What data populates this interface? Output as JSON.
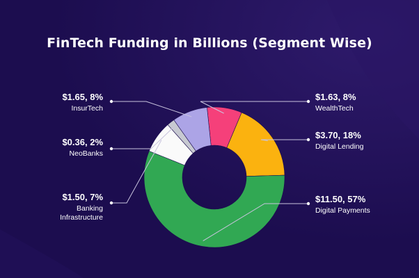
{
  "colors": {
    "background": "#1c0d4f",
    "background_glow": "#2c1866",
    "text": "#ffffff",
    "leader": "#c9c4de"
  },
  "chart_data": {
    "type": "pie",
    "variant": "donut",
    "title": "FinTech Funding in Billions (Segment Wise)",
    "unit": "$ billions",
    "slices": [
      {
        "label": "WealthTech",
        "value": 1.63,
        "percent": 8,
        "value_label": "$1.63, 8%",
        "color": "#f5407a"
      },
      {
        "label": "Digital Lending",
        "value": 3.7,
        "percent": 18,
        "value_label": "$3.70, 18%",
        "color": "#fbb20f"
      },
      {
        "label": "Digital Payments",
        "value": 11.5,
        "percent": 57,
        "value_label": "$11.50, 57%",
        "color": "#31a853"
      },
      {
        "label": "Banking Infrastructure",
        "value": 1.5,
        "percent": 7,
        "value_label": "$1.50, 7%",
        "color": "#fafafa",
        "label_lines": [
          "Banking",
          "Infrastructure"
        ]
      },
      {
        "label": "NeoBanks",
        "value": 0.36,
        "percent": 2,
        "value_label": "$0.36, 2%",
        "color": "#c7c9d1"
      },
      {
        "label": "InsurTech",
        "value": 1.65,
        "percent": 8,
        "value_label": "$1.65, 8%",
        "color": "#aca4e6"
      }
    ],
    "legend": "none"
  }
}
